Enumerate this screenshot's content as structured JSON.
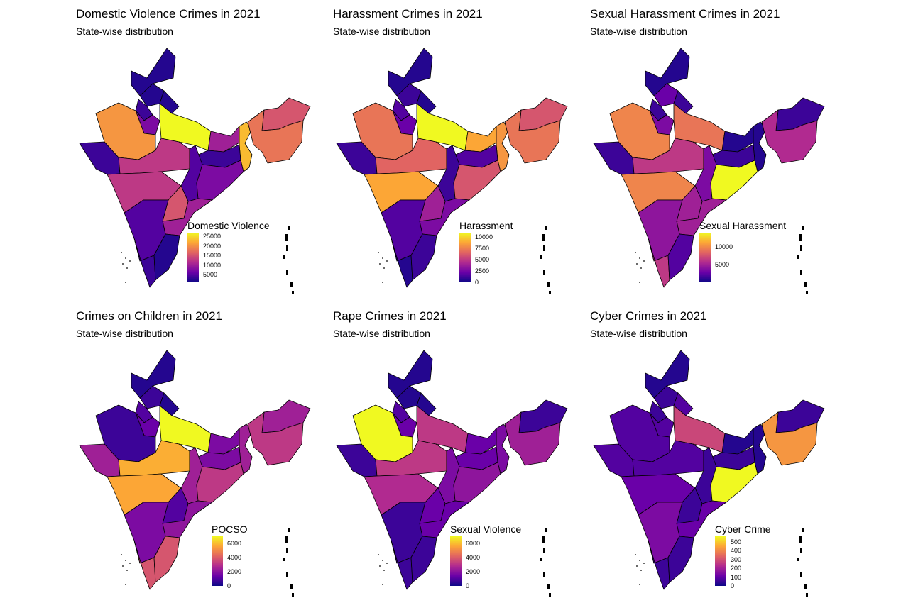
{
  "colors": {
    "scale": [
      "#0d0887",
      "#6a00a8",
      "#b12a90",
      "#e16462",
      "#fca636",
      "#f0f921"
    ],
    "border": "#000000",
    "background": "#ffffff"
  },
  "panels": [
    {
      "title": "Domestic Violence Crimes in 2021",
      "subtitle": "State-wise distribution",
      "legend": {
        "title": "Domestic Violence",
        "min": 1000,
        "max": 27000,
        "ticks": [
          {
            "value": 25000,
            "label": "25000"
          },
          {
            "value": 20000,
            "label": "20000"
          },
          {
            "value": 15000,
            "label": "15000"
          },
          {
            "value": 10000,
            "label": "10000"
          },
          {
            "value": 5000,
            "label": "5000"
          }
        ]
      },
      "levels": {
        "jk": 0.05,
        "hp": 0.05,
        "pb": 0.1,
        "ut": 0.05,
        "hr": 0.25,
        "rj": 0.75,
        "up": 1.0,
        "gj": 0.1,
        "mp": 0.45,
        "br": 0.35,
        "wb": 0.85,
        "jh": 0.1,
        "ct": 0.15,
        "or": 0.25,
        "mh": 0.45,
        "tg": 0.55,
        "ap": 0.35,
        "ka": 0.15,
        "ke": 0.1,
        "tn": 0.05,
        "ne": 0.55,
        "as": 0.65
      }
    },
    {
      "title": "Harassment Crimes in 2021",
      "subtitle": "State-wise distribution",
      "legend": {
        "title": "Harassment",
        "min": 0,
        "max": 11000,
        "ticks": [
          {
            "value": 10000,
            "label": "10000"
          },
          {
            "value": 7500,
            "label": "7500"
          },
          {
            "value": 5000,
            "label": "5000"
          },
          {
            "value": 2500,
            "label": "2500"
          },
          {
            "value": 0,
            "label": "0"
          }
        ]
      },
      "levels": {
        "jk": 0.05,
        "hp": 0.1,
        "pb": 0.15,
        "ut": 0.05,
        "hr": 0.2,
        "rj": 0.65,
        "up": 1.0,
        "gj": 0.1,
        "mp": 0.6,
        "br": 0.8,
        "wb": 0.75,
        "jh": 0.15,
        "ct": 0.1,
        "or": 0.55,
        "mh": 0.8,
        "tg": 0.35,
        "ap": 0.25,
        "ka": 0.15,
        "ke": 0.05,
        "tn": 0.1,
        "ne": 0.55,
        "as": 0.65
      }
    },
    {
      "title": "Sexual Harassment Crimes in 2021",
      "subtitle": "State-wise distribution",
      "legend": {
        "title": "Sexual Harassment",
        "min": 0,
        "max": 14000,
        "ticks": [
          {
            "value": 10000,
            "label": "10000"
          },
          {
            "value": 5000,
            "label": "5000"
          }
        ]
      },
      "levels": {
        "jk": 0.05,
        "hp": 0.2,
        "pb": 0.1,
        "ut": 0.1,
        "hr": 0.25,
        "rj": 0.7,
        "up": 0.65,
        "gj": 0.1,
        "mp": 0.45,
        "br": 0.05,
        "wb": 0.05,
        "jh": 0.1,
        "ct": 0.25,
        "or": 1.0,
        "mh": 0.7,
        "tg": 0.35,
        "ap": 0.35,
        "ka": 0.3,
        "ke": 0.45,
        "tn": 0.15,
        "ne": 0.1,
        "as": 0.4
      }
    },
    {
      "title": "Crimes on Children in 2021",
      "subtitle": "State-wise distribution",
      "legend": {
        "title": "POCSO",
        "min": 0,
        "max": 7000,
        "ticks": [
          {
            "value": 6000,
            "label": "6000"
          },
          {
            "value": 4000,
            "label": "4000"
          },
          {
            "value": 2000,
            "label": "2000"
          },
          {
            "value": 0,
            "label": "0"
          }
        ]
      },
      "levels": {
        "jk": 0.05,
        "hp": 0.1,
        "pb": 0.15,
        "ut": 0.05,
        "hr": 0.2,
        "rj": 0.1,
        "up": 1.0,
        "gj": 0.35,
        "mp": 0.82,
        "br": 0.25,
        "wb": 0.35,
        "jh": 0.25,
        "ct": 0.35,
        "or": 0.45,
        "mh": 0.8,
        "tg": 0.15,
        "ap": 0.3,
        "ka": 0.25,
        "ke": 0.55,
        "tn": 0.55,
        "ne": 0.35,
        "as": 0.45
      }
    },
    {
      "title": "Rape Crimes in 2021",
      "subtitle": "State-wise distribution",
      "legend": {
        "title": "Sexual Violence",
        "min": 0,
        "max": 7000,
        "ticks": [
          {
            "value": 6000,
            "label": "6000"
          },
          {
            "value": 4000,
            "label": "4000"
          },
          {
            "value": 2000,
            "label": "2000"
          },
          {
            "value": 0,
            "label": "0"
          }
        ]
      },
      "levels": {
        "jk": 0.05,
        "hp": 0.05,
        "pb": 0.15,
        "ut": 0.05,
        "hr": 0.2,
        "rj": 1.0,
        "up": 0.45,
        "gj": 0.1,
        "mp": 0.45,
        "br": 0.2,
        "wb": 0.25,
        "jh": 0.2,
        "ct": 0.25,
        "or": 0.3,
        "mh": 0.4,
        "tg": 0.2,
        "ap": 0.2,
        "ka": 0.1,
        "ke": 0.1,
        "tn": 0.1,
        "ne": 0.1,
        "as": 0.35
      }
    },
    {
      "title": "Cyber Crimes in 2021",
      "subtitle": "State-wise distribution",
      "legend": {
        "title": "Cyber Crime",
        "min": 0,
        "max": 560,
        "ticks": [
          {
            "value": 500,
            "label": "500"
          },
          {
            "value": 400,
            "label": "400"
          },
          {
            "value": 300,
            "label": "300"
          },
          {
            "value": 200,
            "label": "200"
          },
          {
            "value": 100,
            "label": "100"
          },
          {
            "value": 0,
            "label": "0"
          }
        ]
      },
      "levels": {
        "jk": 0.05,
        "hp": 0.1,
        "pb": 0.1,
        "ut": 0.15,
        "hr": 0.15,
        "rj": 0.15,
        "up": 0.5,
        "gj": 0.15,
        "mp": 0.15,
        "br": 0.05,
        "wb": 0.05,
        "jh": 0.1,
        "ct": 0.1,
        "or": 1.0,
        "mh": 0.2,
        "tg": 0.1,
        "ap": 0.2,
        "ka": 0.25,
        "ke": 0.1,
        "tn": 0.1,
        "ne": 0.1,
        "as": 0.75
      }
    }
  ]
}
